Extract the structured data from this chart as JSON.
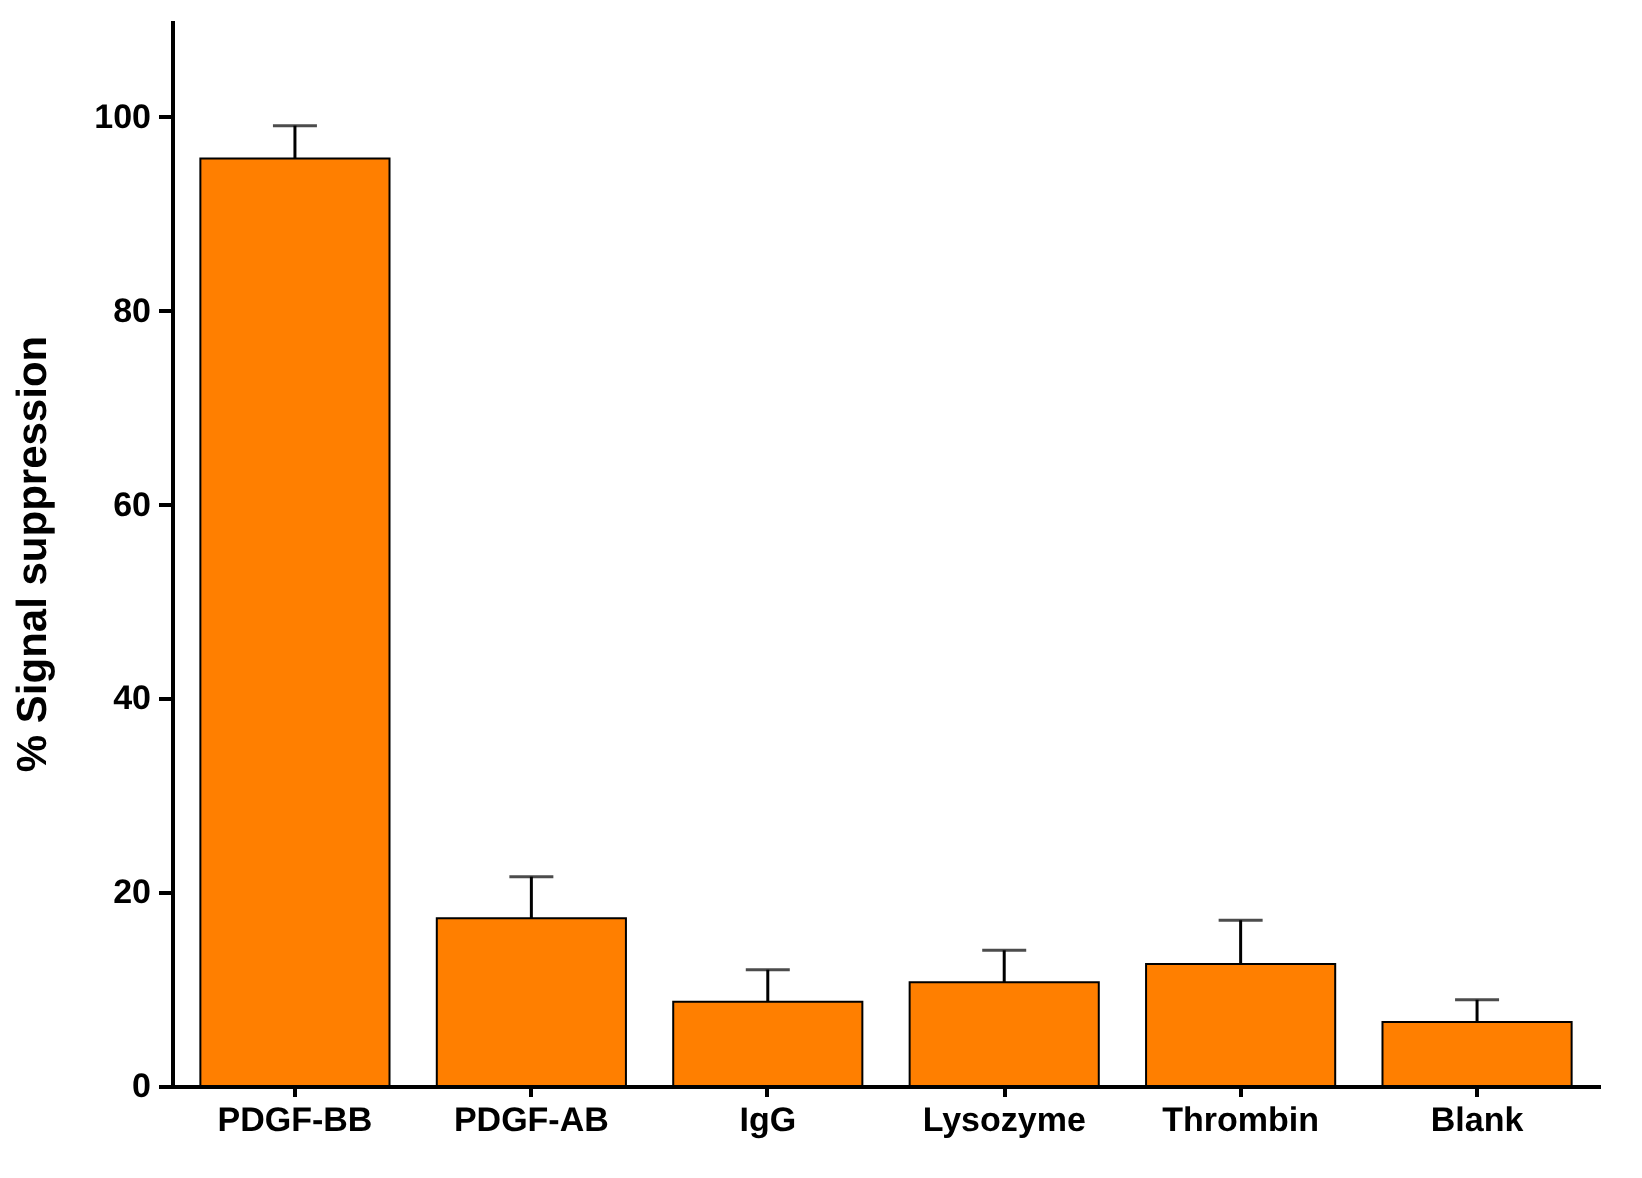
{
  "chart_data": {
    "type": "bar",
    "ylabel": "% Signal suppression",
    "categories": [
      "PDGF-BB",
      "PDGF-AB",
      "IgG",
      "Lysozyme",
      "Thrombin",
      "Blank"
    ],
    "values": [
      95.7,
      17.3,
      8.7,
      10.7,
      12.6,
      6.6
    ],
    "errors": [
      3.4,
      4.3,
      3.3,
      3.3,
      4.5,
      2.3
    ],
    "color": "#ff7f00",
    "ylim": [
      0,
      110
    ],
    "yticks": [
      0,
      20,
      40,
      60,
      80,
      100
    ]
  }
}
